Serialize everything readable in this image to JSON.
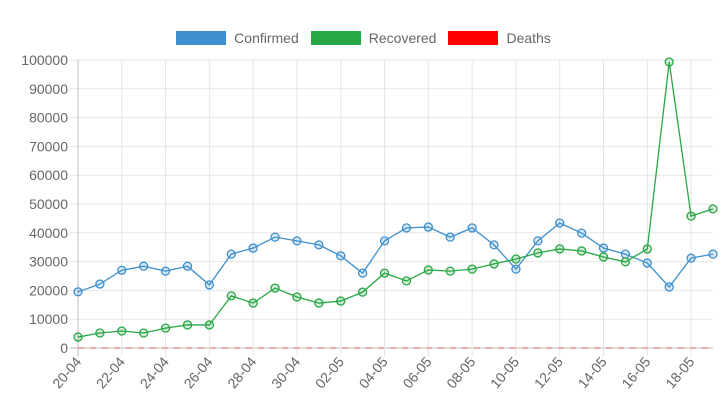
{
  "chart_data": {
    "type": "line",
    "title": "",
    "xlabel": "",
    "ylabel": "",
    "ylim": [
      0,
      100000
    ],
    "yticks": [
      0,
      10000,
      20000,
      30000,
      40000,
      50000,
      60000,
      70000,
      80000,
      90000,
      100000
    ],
    "grid": true,
    "legend_position": "top",
    "x": [
      "20-04",
      "21-04",
      "22-04",
      "23-04",
      "24-04",
      "25-04",
      "26-04",
      "27-04",
      "28-04",
      "29-04",
      "30-04",
      "01-05",
      "02-05",
      "03-05",
      "04-05",
      "05-05",
      "06-05",
      "07-05",
      "08-05",
      "09-05",
      "10-05",
      "11-05",
      "12-05",
      "13-05",
      "14-05",
      "15-05",
      "16-05",
      "17-05",
      "18-05",
      "19-05"
    ],
    "xtick_labels": [
      "20-04",
      "22-04",
      "24-04",
      "26-04",
      "28-04",
      "30-04",
      "02-05",
      "04-05",
      "06-05",
      "08-05",
      "10-05",
      "12-05",
      "14-05",
      "16-05",
      "18-05"
    ],
    "series": [
      {
        "name": "Confirmed",
        "color": "#3e8fcd",
        "values": [
          19500,
          22200,
          27000,
          28400,
          26700,
          28400,
          21900,
          32600,
          34700,
          38500,
          37200,
          35800,
          32000,
          26000,
          37200,
          41700,
          42000,
          38500,
          41700,
          35800,
          27400,
          37200,
          43400,
          39900,
          34700,
          32600,
          29500,
          21200,
          31200,
          32600
        ]
      },
      {
        "name": "Recovered",
        "color": "#28a745",
        "values": [
          3800,
          5200,
          5900,
          5200,
          6900,
          8000,
          8000,
          18100,
          15600,
          20800,
          17700,
          15600,
          16300,
          19400,
          26000,
          23300,
          27100,
          26700,
          27400,
          29200,
          30900,
          33000,
          34400,
          33700,
          31600,
          29900,
          34400,
          99300,
          45800,
          48300
        ]
      },
      {
        "name": "Deaths",
        "color": "#ff0000",
        "values": [
          0,
          0,
          0,
          0,
          0,
          0,
          0,
          0,
          0,
          0,
          0,
          0,
          0,
          0,
          0,
          0,
          0,
          0,
          0,
          0,
          0,
          0,
          0,
          0,
          0,
          0,
          0,
          0,
          0,
          0
        ]
      }
    ]
  },
  "legend": {
    "items": [
      {
        "label": "Confirmed",
        "color": "#3e8fcd"
      },
      {
        "label": "Recovered",
        "color": "#28a745"
      },
      {
        "label": "Deaths",
        "color": "#ff0000"
      }
    ]
  }
}
